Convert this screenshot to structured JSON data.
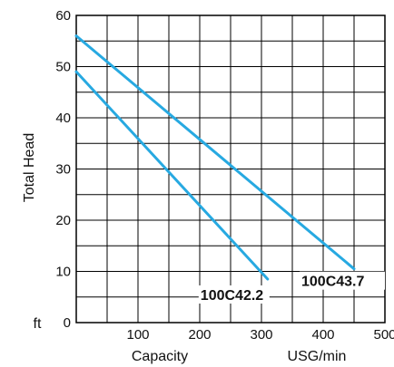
{
  "chart_data": {
    "type": "line",
    "title": "",
    "xlabel": "Capacity",
    "x_unit": "USG/min",
    "ylabel": "Total Head",
    "y_unit": "ft",
    "xlim": [
      0,
      500
    ],
    "ylim": [
      0,
      60
    ],
    "x_ticks": [
      "100",
      "200",
      "300",
      "400",
      "500"
    ],
    "y_ticks": [
      "0",
      "10",
      "20",
      "30",
      "40",
      "50",
      "60"
    ],
    "x_minor_step": 50,
    "y_minor_step": 5,
    "grid": true,
    "line_color": "#27a9e1",
    "series": [
      {
        "name": "100C42.2",
        "x": [
          0,
          310
        ],
        "y": [
          49,
          8.5
        ]
      },
      {
        "name": "100C43.7",
        "x": [
          0,
          450
        ],
        "y": [
          56,
          10.5
        ]
      }
    ]
  }
}
